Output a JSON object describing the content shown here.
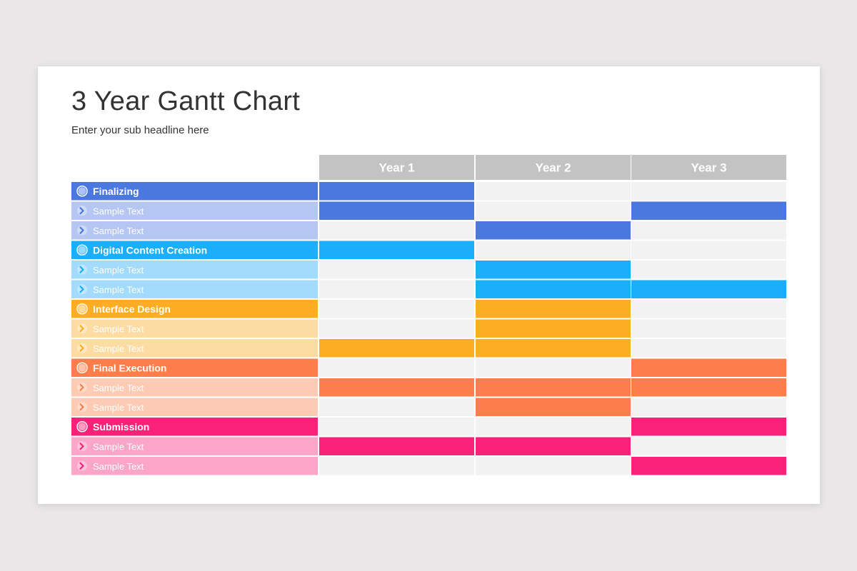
{
  "slide": {
    "title": "3 Year Gantt Chart",
    "subtitle": "Enter your sub headline here"
  },
  "chart_data": {
    "type": "gantt",
    "columns": [
      "Year 1",
      "Year 2",
      "Year 3"
    ],
    "groups": [
      {
        "name": "Finalizing",
        "color": "#4a78de",
        "light_color": "#b4c6f1",
        "active": [
          1,
          0,
          0
        ],
        "tasks": [
          {
            "label": "Sample Text",
            "active": [
              1,
              0,
              1
            ]
          },
          {
            "label": "Sample Text",
            "active": [
              0,
              1,
              0
            ]
          }
        ]
      },
      {
        "name": "Digital Content Creation",
        "color": "#1aaefb",
        "light_color": "#a2dbfb",
        "active": [
          1,
          0,
          0
        ],
        "tasks": [
          {
            "label": "Sample Text",
            "active": [
              0,
              1,
              0
            ]
          },
          {
            "label": "Sample Text",
            "active": [
              0,
              1,
              1
            ]
          }
        ]
      },
      {
        "name": "Interface Design",
        "color": "#fcad23",
        "light_color": "#fcdca3",
        "active": [
          0,
          1,
          0
        ],
        "tasks": [
          {
            "label": "Sample Text",
            "active": [
              0,
              1,
              0
            ]
          },
          {
            "label": "Sample Text",
            "active": [
              1,
              1,
              0
            ]
          }
        ]
      },
      {
        "name": "Final Execution",
        "color": "#fd7e4a",
        "light_color": "#fdcab3",
        "active": [
          0,
          0,
          1
        ],
        "tasks": [
          {
            "label": "Sample Text",
            "active": [
              1,
              1,
              1
            ]
          },
          {
            "label": "Sample Text",
            "active": [
              0,
              1,
              0
            ]
          }
        ]
      },
      {
        "name": "Submission",
        "color": "#f92278",
        "light_color": "#fba5c8",
        "active": [
          0,
          0,
          1
        ],
        "tasks": [
          {
            "label": "Sample Text",
            "active": [
              1,
              1,
              0
            ]
          },
          {
            "label": "Sample Text",
            "active": [
              0,
              0,
              1
            ]
          }
        ]
      }
    ],
    "header_color": "#c3c3c3",
    "empty_cell_color": "#f2f2f2"
  }
}
